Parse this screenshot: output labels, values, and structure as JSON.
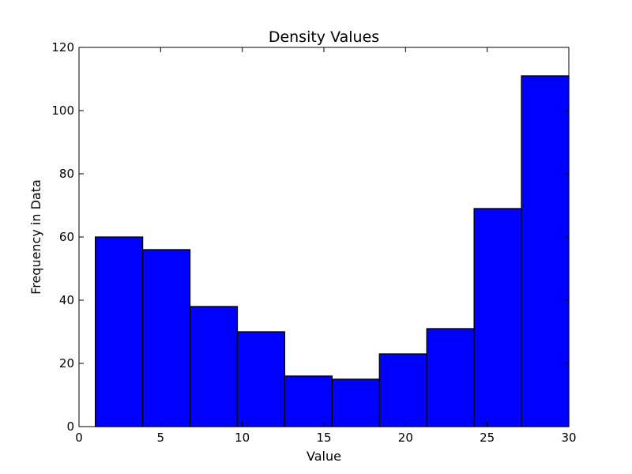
{
  "chart_data": {
    "type": "bar",
    "title": "Density Values",
    "xlabel": "Value",
    "ylabel": "Frequency in Data",
    "xlim": [
      0,
      30
    ],
    "ylim": [
      0,
      120
    ],
    "grid": false,
    "bin_edges": [
      1.0,
      3.9,
      6.8,
      9.7,
      12.6,
      15.5,
      18.4,
      21.3,
      24.2,
      27.1,
      30.0
    ],
    "values": [
      60,
      56,
      38,
      30,
      16,
      15,
      23,
      31,
      69,
      111
    ],
    "x_ticks": [
      0,
      5,
      10,
      15,
      20,
      25,
      30
    ],
    "x_tick_labels": [
      "0",
      "5",
      "10",
      "15",
      "20",
      "25",
      "30"
    ],
    "y_ticks": [
      0,
      20,
      40,
      60,
      80,
      100,
      120
    ],
    "y_tick_labels": [
      "0",
      "20",
      "40",
      "60",
      "80",
      "100",
      "120"
    ],
    "bar_color": "#0000ff",
    "edge_color": "#000000"
  }
}
